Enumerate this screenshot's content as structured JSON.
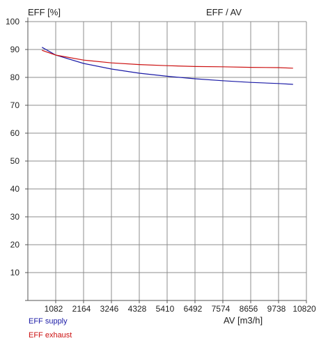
{
  "chart_data": {
    "type": "line",
    "title": "EFF / AV",
    "ylabel": "EFF [%]",
    "xlabel": "AV [m3/h]",
    "xlim": [
      0,
      10820
    ],
    "ylim": [
      0,
      100
    ],
    "x_ticks": [
      1082,
      2164,
      3246,
      4328,
      5410,
      6492,
      7574,
      8656,
      9738,
      10820
    ],
    "y_ticks": [
      10,
      20,
      30,
      40,
      50,
      60,
      70,
      80,
      90,
      100
    ],
    "grid": true,
    "legend_position": "bottom-left",
    "series": [
      {
        "name": "EFF supply",
        "color": "#1a1aa6",
        "x": [
          550,
          1082,
          2164,
          3246,
          4328,
          5410,
          6492,
          7574,
          8656,
          9738,
          10300
        ],
        "y": [
          90.8,
          88.0,
          85.0,
          83.0,
          81.5,
          80.4,
          79.5,
          78.8,
          78.2,
          77.8,
          77.5
        ]
      },
      {
        "name": "EFF exhaust",
        "color": "#cc1111",
        "x": [
          550,
          1082,
          2164,
          3246,
          4328,
          5410,
          6492,
          7574,
          8656,
          9738,
          10300
        ],
        "y": [
          89.7,
          88.0,
          86.2,
          85.2,
          84.6,
          84.2,
          83.9,
          83.8,
          83.6,
          83.5,
          83.3
        ]
      }
    ]
  }
}
